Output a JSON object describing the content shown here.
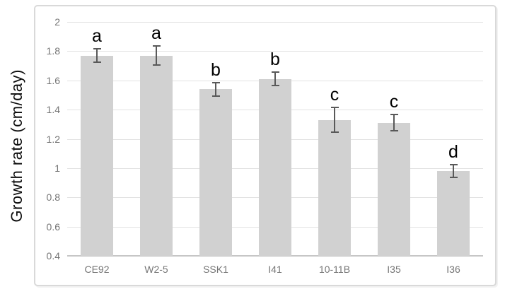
{
  "chart_data": {
    "type": "bar",
    "title": "",
    "xlabel": "",
    "ylabel": "Growth rate (cm/day)",
    "categories": [
      "CE92",
      "W2-5",
      "SSK1",
      "I41",
      "10-11B",
      "I35",
      "I36"
    ],
    "values": [
      1.77,
      1.77,
      1.54,
      1.61,
      1.33,
      1.31,
      0.98
    ],
    "error_bars": [
      0.05,
      0.07,
      0.05,
      0.05,
      0.09,
      0.06,
      0.05
    ],
    "bar_letters": [
      "a",
      "a",
      "b",
      "b",
      "c",
      "c",
      "d"
    ],
    "ylim": [
      0.4,
      2.0
    ],
    "ytick_values": [
      2,
      1.8,
      1.6,
      1.4,
      1.2,
      1,
      0.8,
      0.6,
      0.4
    ],
    "ytick_labels": [
      "2",
      "1.8",
      "1.6",
      "1.4",
      "1.2",
      "1",
      "0.8",
      "0.6",
      "0.4"
    ],
    "grid": "horizontal",
    "legend": "none",
    "colors": {
      "bar_fill": "#d1d1d1",
      "error_bar": "#595959",
      "gridline": "#e2e2e2",
      "axis_line": "#c6c6c6",
      "tick_label": "#757575",
      "letter_label": "#000000",
      "axis_title": "#0d0d0d",
      "chart_border": "#d9d9d9"
    }
  }
}
